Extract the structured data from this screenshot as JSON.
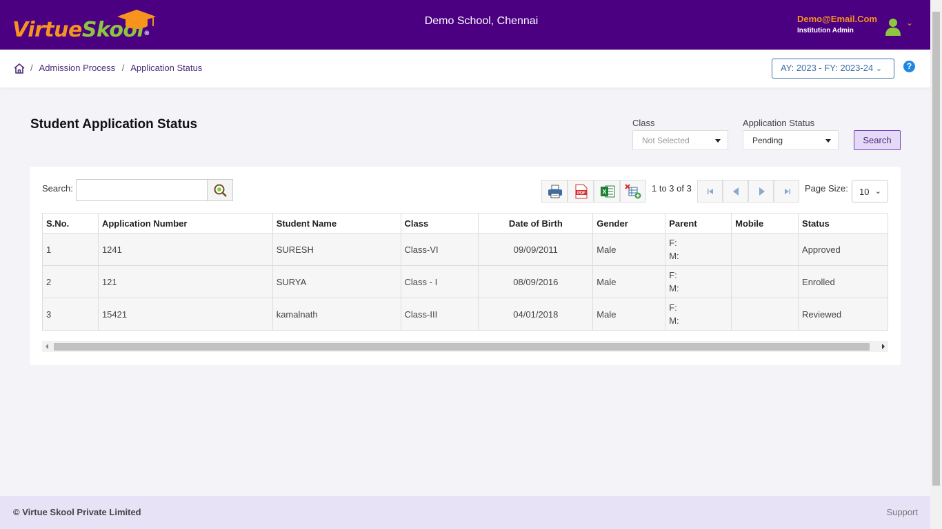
{
  "header": {
    "logo_part1": "Virtue",
    "logo_part2": "Skool",
    "logo_reg": "®",
    "school_name": "Demo School, Chennai",
    "user_email": "Demo@Email.Com",
    "user_role": "Institution Admin"
  },
  "breadcrumb": {
    "items": [
      "Admission Process",
      "Application Status"
    ],
    "separator": "/"
  },
  "year_selector": {
    "value": "AY: 2023 - FY: 2023-24",
    "chevron": "⌄"
  },
  "help_label": "?",
  "page_title": "Student Application Status",
  "filters": {
    "class_label": "Class",
    "class_value": "Not Selected",
    "status_label": "Application Status",
    "status_value": "Pending",
    "search_button": "Search"
  },
  "grid": {
    "search_label": "Search:",
    "search_value": "",
    "page_info": "1 to 3 of 3",
    "page_size_label": "Page Size:",
    "page_size_value": "10",
    "columns": [
      "S.No.",
      "Application Number",
      "Student Name",
      "Class",
      "Date of Birth",
      "Gender",
      "Parent",
      "Mobile",
      "Status"
    ],
    "rows": [
      {
        "sno": "1",
        "app_no": "1241",
        "name": "SURESH",
        "class": "Class-VI",
        "dob": "09/09/2011",
        "gender": "Male",
        "father": "F:",
        "mother": "M:",
        "mobile": "",
        "status": "Approved"
      },
      {
        "sno": "2",
        "app_no": "121",
        "name": "SURYA",
        "class": "Class - I",
        "dob": "08/09/2016",
        "gender": "Male",
        "father": "F:",
        "mother": "M:",
        "mobile": "",
        "status": "Enrolled"
      },
      {
        "sno": "3",
        "app_no": "15421",
        "name": "kamalnath",
        "class": "Class-III",
        "dob": "04/01/2018",
        "gender": "Male",
        "father": "F:",
        "mother": "M:",
        "mobile": "",
        "status": "Reviewed"
      }
    ]
  },
  "footer": {
    "copyright": "© Virtue Skool Private Limited",
    "support": "Support"
  },
  "colors": {
    "header_bg": "#4b0082",
    "accent_orange": "#f7941d",
    "accent_green": "#8dc63f",
    "footer_bg": "#e8e2f7"
  },
  "icons": [
    "graduation-cap-icon",
    "user-avatar-icon",
    "home-icon",
    "help-icon",
    "search-icon",
    "print-icon",
    "pdf-icon",
    "excel-icon",
    "clear-filter-icon",
    "first-page-icon",
    "prev-page-icon",
    "next-page-icon",
    "last-page-icon"
  ]
}
